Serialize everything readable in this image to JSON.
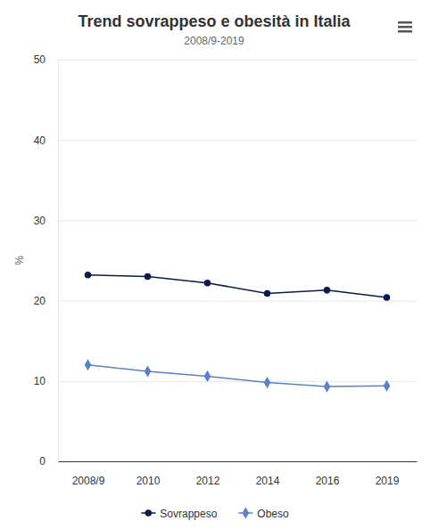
{
  "chart_data": {
    "type": "line",
    "title": "Trend sovrappeso e obesità in Italia",
    "subtitle": "2008/9-2019",
    "ylabel": "%",
    "categories": [
      "2008/9",
      "2010",
      "2012",
      "2014",
      "2016",
      "2019"
    ],
    "series": [
      {
        "name": "Sovrappeso",
        "color": "#0b1a4e",
        "marker": "circle",
        "values": [
          23.2,
          23.0,
          22.2,
          20.9,
          21.3,
          20.4
        ]
      },
      {
        "name": "Obeso",
        "color": "#5b80cc",
        "marker": "diamond",
        "values": [
          12.0,
          11.2,
          10.6,
          9.8,
          9.3,
          9.4
        ]
      }
    ],
    "ylim": [
      0,
      50
    ],
    "yticks": [
      0,
      10,
      20,
      30,
      40,
      50
    ],
    "grid": true,
    "legend": "bottom"
  }
}
